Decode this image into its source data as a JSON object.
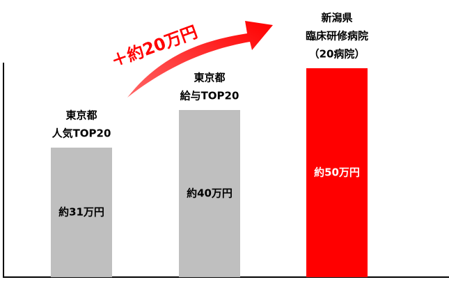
{
  "chart_data": {
    "type": "bar",
    "categories": [
      [
        "東京都",
        "人気TOP20"
      ],
      [
        "東京都",
        "給与TOP20"
      ],
      [
        "新潟県",
        "臨床研修病院",
        "（20病院）"
      ]
    ],
    "values": [
      31,
      40,
      50
    ],
    "value_labels": [
      "約31万円",
      "約40万円",
      "約50万円"
    ],
    "colors": [
      "#bfbfbf",
      "#bfbfbf",
      "#ff0000"
    ],
    "annotation": "＋約20万円"
  }
}
